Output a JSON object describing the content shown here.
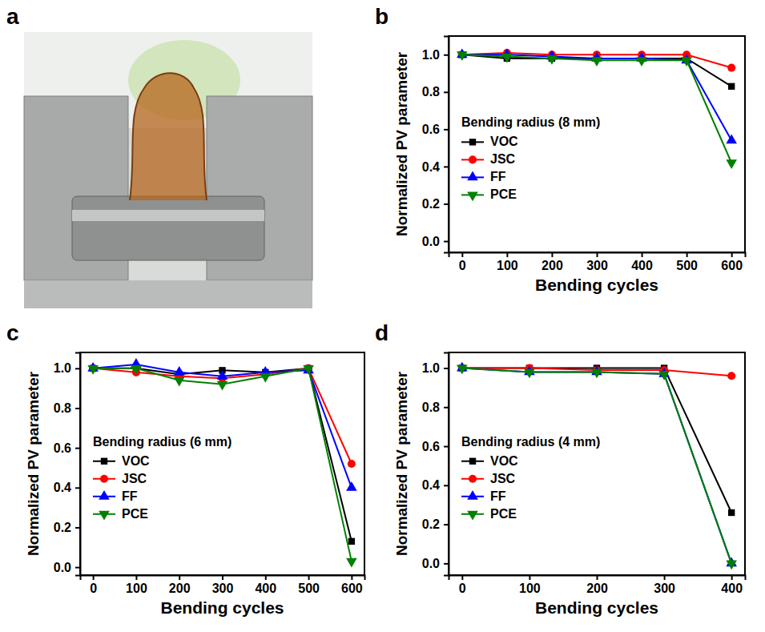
{
  "image": {
    "panel": "a"
  },
  "chart_data": [
    {
      "type": "line",
      "panel": "b",
      "legend_title": "Bending radius (8 mm)",
      "x_label": "Bending cycles",
      "y_label": "Normalized PV parameter",
      "x": [
        0,
        100,
        200,
        300,
        400,
        500,
        600
      ],
      "xlim": [
        -30,
        630
      ],
      "xticks": [
        0,
        100,
        200,
        300,
        400,
        500,
        600
      ],
      "ylim": [
        -0.06,
        1.1
      ],
      "yticks": [
        {
          "value": 0,
          "label": "0.0"
        },
        {
          "value": 0.2,
          "label": "0.2"
        },
        {
          "value": 0.4,
          "label": "0.4"
        },
        {
          "value": 0.6,
          "label": "0.6"
        },
        {
          "value": 0.8,
          "label": "0.8"
        },
        {
          "value": 1,
          "label": "1.0"
        }
      ],
      "legend": "lower left",
      "series": [
        {
          "name": "VOC",
          "color": "#000000",
          "marker": "square",
          "values": [
            1,
            0.98,
            0.98,
            0.98,
            0.98,
            0.98,
            0.83
          ]
        },
        {
          "name": "JSC",
          "color": "#ff0000",
          "marker": "circle",
          "values": [
            1,
            1.01,
            1.0,
            1.0,
            1.0,
            1.0,
            0.93
          ]
        },
        {
          "name": "FF",
          "color": "#0000ff",
          "marker": "triangle-up",
          "values": [
            1,
            1.0,
            0.99,
            0.98,
            0.98,
            0.97,
            0.54
          ]
        },
        {
          "name": "PCE",
          "color": "#008000",
          "marker": "triangle-down",
          "values": [
            1,
            0.99,
            0.98,
            0.97,
            0.97,
            0.97,
            0.42
          ]
        }
      ]
    },
    {
      "type": "line",
      "panel": "c",
      "legend_title": "Bending radius (6 mm)",
      "x_label": "Bending cycles",
      "y_label": "Normalized PV parameter",
      "x": [
        0,
        100,
        200,
        300,
        400,
        500,
        600
      ],
      "xlim": [
        -30,
        630
      ],
      "xticks": [
        0,
        100,
        200,
        300,
        400,
        500,
        600
      ],
      "ylim": [
        -0.04,
        1.08
      ],
      "yticks": [
        {
          "value": 0,
          "label": "0.0"
        },
        {
          "value": 0.2,
          "label": "0.2"
        },
        {
          "value": 0.4,
          "label": "0.4"
        },
        {
          "value": 0.6,
          "label": "0.6"
        },
        {
          "value": 0.8,
          "label": "0.8"
        },
        {
          "value": 1,
          "label": "1.0"
        }
      ],
      "legend": "lower left",
      "series": [
        {
          "name": "VOC",
          "color": "#000000",
          "marker": "square",
          "values": [
            1,
            1.0,
            0.97,
            0.99,
            0.98,
            1.0,
            0.13
          ]
        },
        {
          "name": "JSC",
          "color": "#ff0000",
          "marker": "circle",
          "values": [
            1,
            0.98,
            0.96,
            0.95,
            0.97,
            1.0,
            0.52
          ]
        },
        {
          "name": "FF",
          "color": "#0000ff",
          "marker": "triangle-up",
          "values": [
            1,
            1.02,
            0.98,
            0.96,
            0.98,
            0.99,
            0.4
          ]
        },
        {
          "name": "PCE",
          "color": "#008000",
          "marker": "triangle-down",
          "values": [
            1,
            1.0,
            0.94,
            0.92,
            0.96,
            1.0,
            0.03
          ]
        }
      ]
    },
    {
      "type": "line",
      "panel": "d",
      "legend_title": "Bending radius (4 mm)",
      "x_label": "Bending cycles",
      "y_label": "Normalized PV parameter",
      "x": [
        0,
        100,
        200,
        300,
        400
      ],
      "xlim": [
        -20,
        420
      ],
      "xticks": [
        0,
        100,
        200,
        300,
        400
      ],
      "ylim": [
        -0.06,
        1.08
      ],
      "yticks": [
        {
          "value": 0,
          "label": "0.0"
        },
        {
          "value": 0.2,
          "label": "0.2"
        },
        {
          "value": 0.4,
          "label": "0.4"
        },
        {
          "value": 0.6,
          "label": "0.6"
        },
        {
          "value": 0.8,
          "label": "0.8"
        },
        {
          "value": 1,
          "label": "1.0"
        }
      ],
      "legend": "lower left",
      "series": [
        {
          "name": "VOC",
          "color": "#000000",
          "marker": "square",
          "values": [
            1,
            1.0,
            1.0,
            1.0,
            0.26
          ]
        },
        {
          "name": "JSC",
          "color": "#ff0000",
          "marker": "circle",
          "values": [
            1,
            1.0,
            0.99,
            0.99,
            0.96
          ]
        },
        {
          "name": "FF",
          "color": "#0000ff",
          "marker": "triangle-up",
          "values": [
            1,
            0.98,
            0.98,
            0.97,
            0.0
          ]
        },
        {
          "name": "PCE",
          "color": "#008000",
          "marker": "triangle-down",
          "values": [
            1,
            0.98,
            0.98,
            0.97,
            0.0
          ]
        }
      ]
    }
  ]
}
